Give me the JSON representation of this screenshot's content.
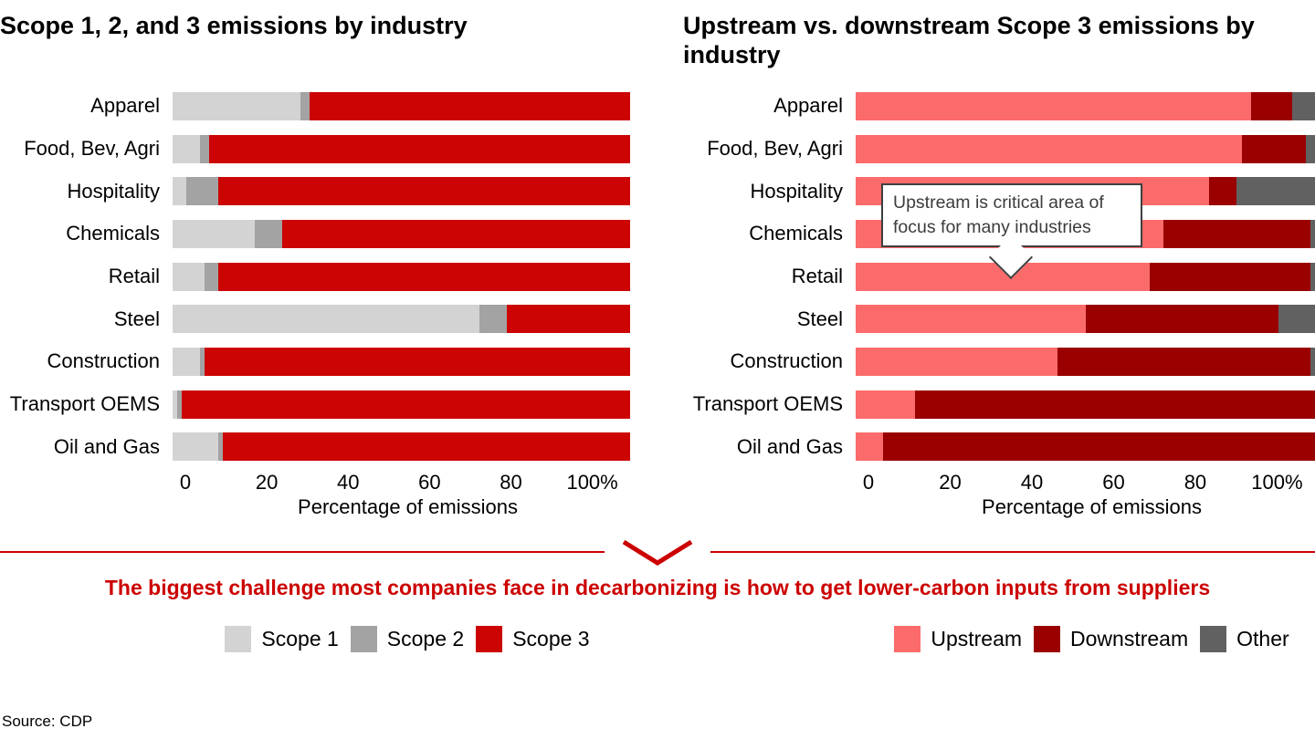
{
  "headline": {
    "text": "The biggest challenge most companies face in decarbonizing is how to get lower-carbon inputs from suppliers"
  },
  "source_text": "Source: CDP",
  "callout": {
    "text": "Upstream is critical area of focus for many industries"
  },
  "colors": {
    "scope1": "#d3d3d3",
    "scope2": "#a3a3a3",
    "scope3": "#cc0404",
    "upstream": "#fb6b6b",
    "downstream": "#9a0000",
    "other": "#616161",
    "accent_red": "#cc0000"
  },
  "chart_data": [
    {
      "type": "bar",
      "orientation": "horizontal",
      "stacked": true,
      "normalized": true,
      "title": "Scope 1, 2, and 3 emissions by industry",
      "xlabel": "Percentage of emissions",
      "xlim": [
        0,
        100
      ],
      "x_ticks": [
        "0",
        "20",
        "40",
        "60",
        "80",
        "100%"
      ],
      "grid": false,
      "legend_position": "bottom",
      "categories": [
        "Apparel",
        "Food, Bev, Agri",
        "Hospitality",
        "Chemicals",
        "Retail",
        "Steel",
        "Construction",
        "Transport OEMS",
        "Oil and Gas"
      ],
      "series": [
        {
          "name": "Scope 1",
          "color_key": "scope1",
          "values": [
            28,
            6,
            3,
            18,
            7,
            67,
            6,
            1,
            10
          ]
        },
        {
          "name": "Scope 2",
          "color_key": "scope2",
          "values": [
            2,
            2,
            7,
            6,
            3,
            6,
            1,
            1,
            1
          ]
        },
        {
          "name": "Scope 3",
          "color_key": "scope3",
          "values": [
            70,
            92,
            90,
            76,
            90,
            27,
            93,
            98,
            89
          ]
        }
      ]
    },
    {
      "type": "bar",
      "orientation": "horizontal",
      "stacked": true,
      "normalized": true,
      "title": "Upstream vs. downstream Scope 3 emissions by industry",
      "xlabel": "Percentage of emissions",
      "xlim": [
        0,
        100
      ],
      "x_ticks": [
        "0",
        "20",
        "40",
        "60",
        "80",
        "100%"
      ],
      "grid": false,
      "legend_position": "bottom",
      "annotation": "Upstream is critical area of focus for many industries",
      "categories": [
        "Apparel",
        "Food, Bev, Agri",
        "Hospitality",
        "Chemicals",
        "Retail",
        "Steel",
        "Construction",
        "Transport OEMS",
        "Oil and Gas"
      ],
      "series": [
        {
          "name": "Upstream",
          "color_key": "upstream",
          "values": [
            86,
            84,
            77,
            67,
            64,
            50,
            44,
            13,
            6
          ]
        },
        {
          "name": "Downstream",
          "color_key": "downstream",
          "values": [
            9,
            14,
            6,
            32,
            35,
            42,
            55,
            87,
            94
          ]
        },
        {
          "name": "Other",
          "color_key": "other",
          "values": [
            5,
            2,
            17,
            1,
            1,
            8,
            1,
            0,
            0
          ]
        }
      ]
    }
  ],
  "legends": [
    {
      "items": [
        {
          "label": "Scope 1",
          "color_key": "scope1"
        },
        {
          "label": "Scope 2",
          "color_key": "scope2"
        },
        {
          "label": "Scope 3",
          "color_key": "scope3"
        }
      ]
    },
    {
      "items": [
        {
          "label": "Upstream",
          "color_key": "upstream"
        },
        {
          "label": "Downstream",
          "color_key": "downstream"
        },
        {
          "label": "Other",
          "color_key": "other"
        }
      ]
    }
  ]
}
